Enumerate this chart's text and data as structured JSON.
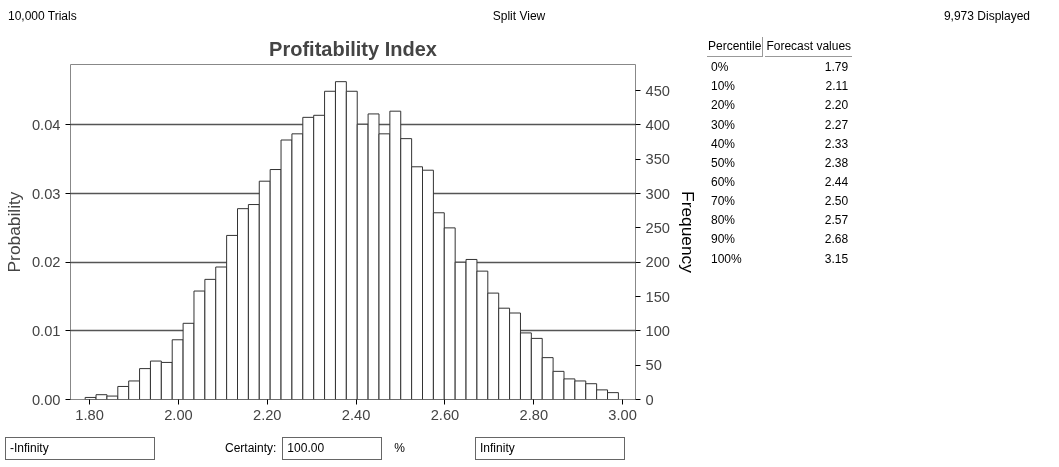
{
  "chart_data": {
    "type": "histogram",
    "title": "Profitability Index",
    "ylabel": "Probability",
    "y2label": "Frequency",
    "bins": [
      1.79,
      1.8145,
      1.839,
      1.8635,
      1.888,
      1.9125,
      1.937,
      1.9615,
      1.986,
      2.0105,
      2.035,
      2.0595,
      2.084,
      2.1085,
      2.133,
      2.1575,
      2.182,
      2.2065,
      2.231,
      2.2555,
      2.28,
      2.3045,
      2.329,
      2.3535,
      2.378,
      2.4025,
      2.427,
      2.4515,
      2.476,
      2.5005,
      2.525,
      2.5495,
      2.574,
      2.5985,
      2.623,
      2.6475,
      2.672,
      2.6965,
      2.721,
      2.7455,
      2.77,
      2.7945,
      2.819,
      2.8435,
      2.868,
      2.8925,
      2.917,
      2.9415,
      2.966,
      2.9905
    ],
    "values": [
      0.0003,
      0.0007,
      0.0005,
      0.0019,
      0.0027,
      0.0045,
      0.0056,
      0.0054,
      0.0087,
      0.0111,
      0.0158,
      0.0175,
      0.0193,
      0.0239,
      0.0278,
      0.0284,
      0.0318,
      0.0335,
      0.0378,
      0.0387,
      0.0411,
      0.0414,
      0.0449,
      0.0463,
      0.0449,
      0.0401,
      0.0416,
      0.0387,
      0.042,
      0.038,
      0.0339,
      0.0334,
      0.0272,
      0.025,
      0.02,
      0.0204,
      0.0187,
      0.0155,
      0.0133,
      0.0126,
      0.0097,
      0.0089,
      0.0061,
      0.0041,
      0.003,
      0.0027,
      0.0023,
      0.0014,
      0.001
    ],
    "color": "#ffffff",
    "xlim": [
      1.757,
      3.029
    ],
    "xticks": [
      {
        "value": 1.8,
        "label": "1.80"
      },
      {
        "value": 2.0,
        "label": "2.00"
      },
      {
        "value": 2.2,
        "label": "2.20"
      },
      {
        "value": 2.4,
        "label": "2.40"
      },
      {
        "value": 2.6,
        "label": "2.60"
      },
      {
        "value": 2.8,
        "label": "2.80"
      },
      {
        "value": 3.0,
        "label": "3.00"
      }
    ],
    "ylim": [
      0,
      0.0488
    ],
    "yticks": [
      {
        "value": 0,
        "label": "0.00"
      },
      {
        "value": 0.01,
        "label": "0.01"
      },
      {
        "value": 0.02,
        "label": "0.02"
      },
      {
        "value": 0.03,
        "label": "0.03"
      },
      {
        "value": 0.04,
        "label": "0.04"
      }
    ],
    "y2lim": [
      0,
      488
    ],
    "y2ticks": [
      0,
      50,
      100,
      150,
      200,
      250,
      300,
      350,
      400,
      450
    ],
    "grid": "y",
    "annotations": [
      "10,000 Trials",
      "Split View",
      "9,973 Displayed",
      "Percentile",
      "Forecast values",
      "0%",
      "1.79",
      "10%",
      "2.11",
      "20%",
      "2.20",
      "30%",
      "2.27",
      "40%",
      "2.33",
      "50%",
      "2.38",
      "60%",
      "2.44",
      "70%",
      "2.50",
      "80%",
      "2.57",
      "90%",
      "2.68",
      "100%",
      "3.15",
      "-Infinity",
      "Certainty:",
      "100.00",
      "%",
      "Infinity"
    ]
  }
}
